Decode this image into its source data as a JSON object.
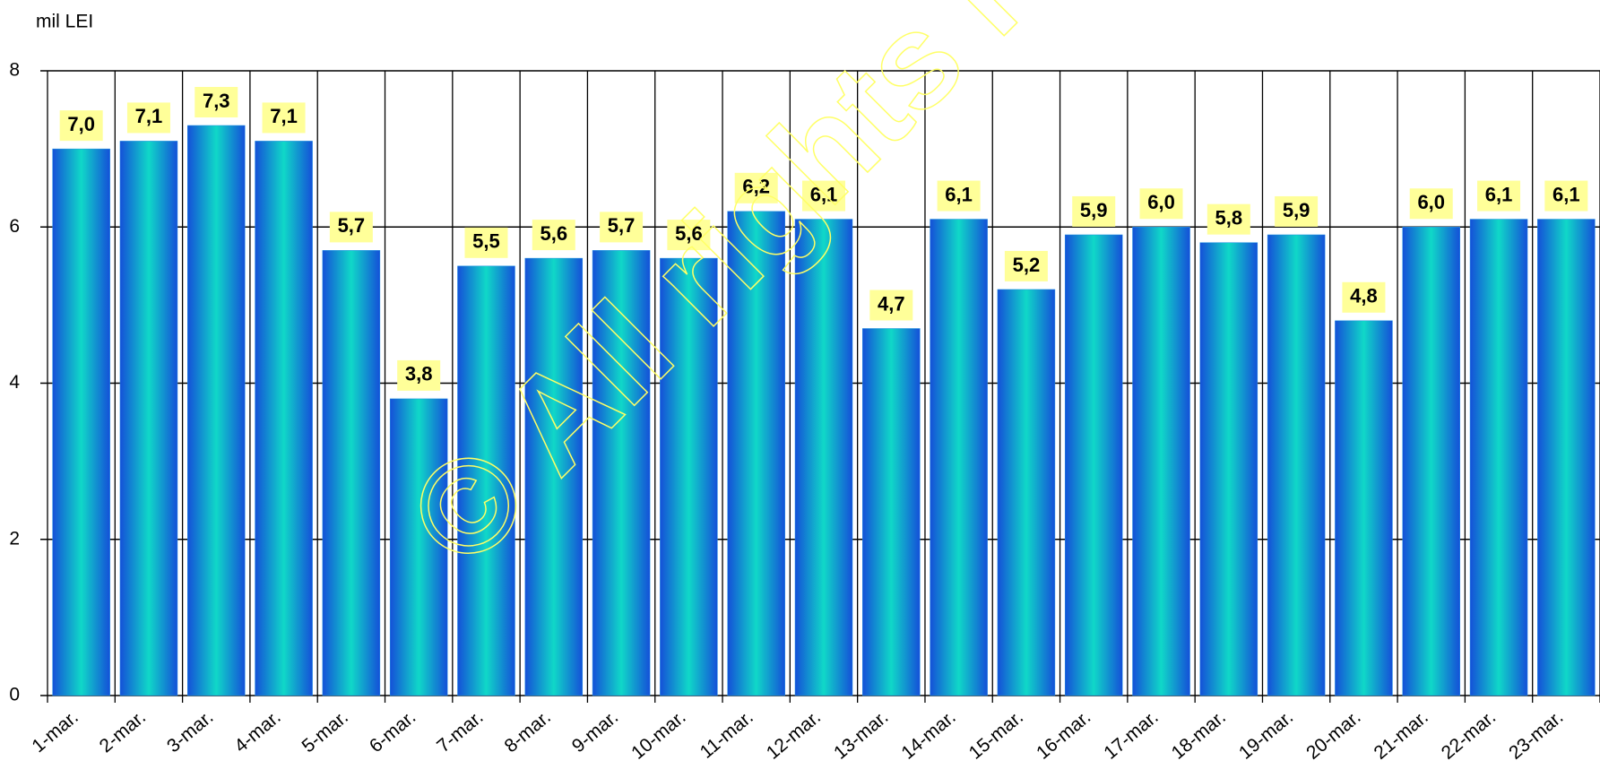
{
  "chart_data": {
    "type": "bar",
    "y_label": "mil LEI",
    "watermark": "© All rights reserved",
    "categories": [
      "1-mar.",
      "2-mar.",
      "3-mar.",
      "4-mar.",
      "5-mar.",
      "6-mar.",
      "7-mar.",
      "8-mar.",
      "9-mar.",
      "10-mar.",
      "11-mar.",
      "12-mar.",
      "13-mar.",
      "14-mar.",
      "15-mar.",
      "16-mar.",
      "17-mar.",
      "18-mar.",
      "19-mar.",
      "20-mar.",
      "21-mar.",
      "22-mar.",
      "23-mar."
    ],
    "values": [
      7.0,
      7.1,
      7.3,
      7.1,
      5.7,
      3.8,
      5.5,
      5.6,
      5.7,
      5.6,
      6.2,
      6.1,
      4.7,
      6.1,
      5.2,
      5.9,
      6.0,
      5.8,
      5.9,
      4.8,
      6.0,
      6.1,
      6.1
    ],
    "value_labels": [
      "7,0",
      "7,1",
      "7,3",
      "7,1",
      "5,7",
      "3,8",
      "5,5",
      "5,6",
      "5,7",
      "5,6",
      "6,2",
      "6,1",
      "4,7",
      "6,1",
      "5,2",
      "5,9",
      "6,0",
      "5,8",
      "5,9",
      "4,8",
      "6,0",
      "6,1",
      "6,1"
    ],
    "color": "#1e90e0",
    "ylim": [
      0,
      8
    ],
    "yticks": [
      0,
      2,
      4,
      6,
      8
    ],
    "grid": true
  }
}
